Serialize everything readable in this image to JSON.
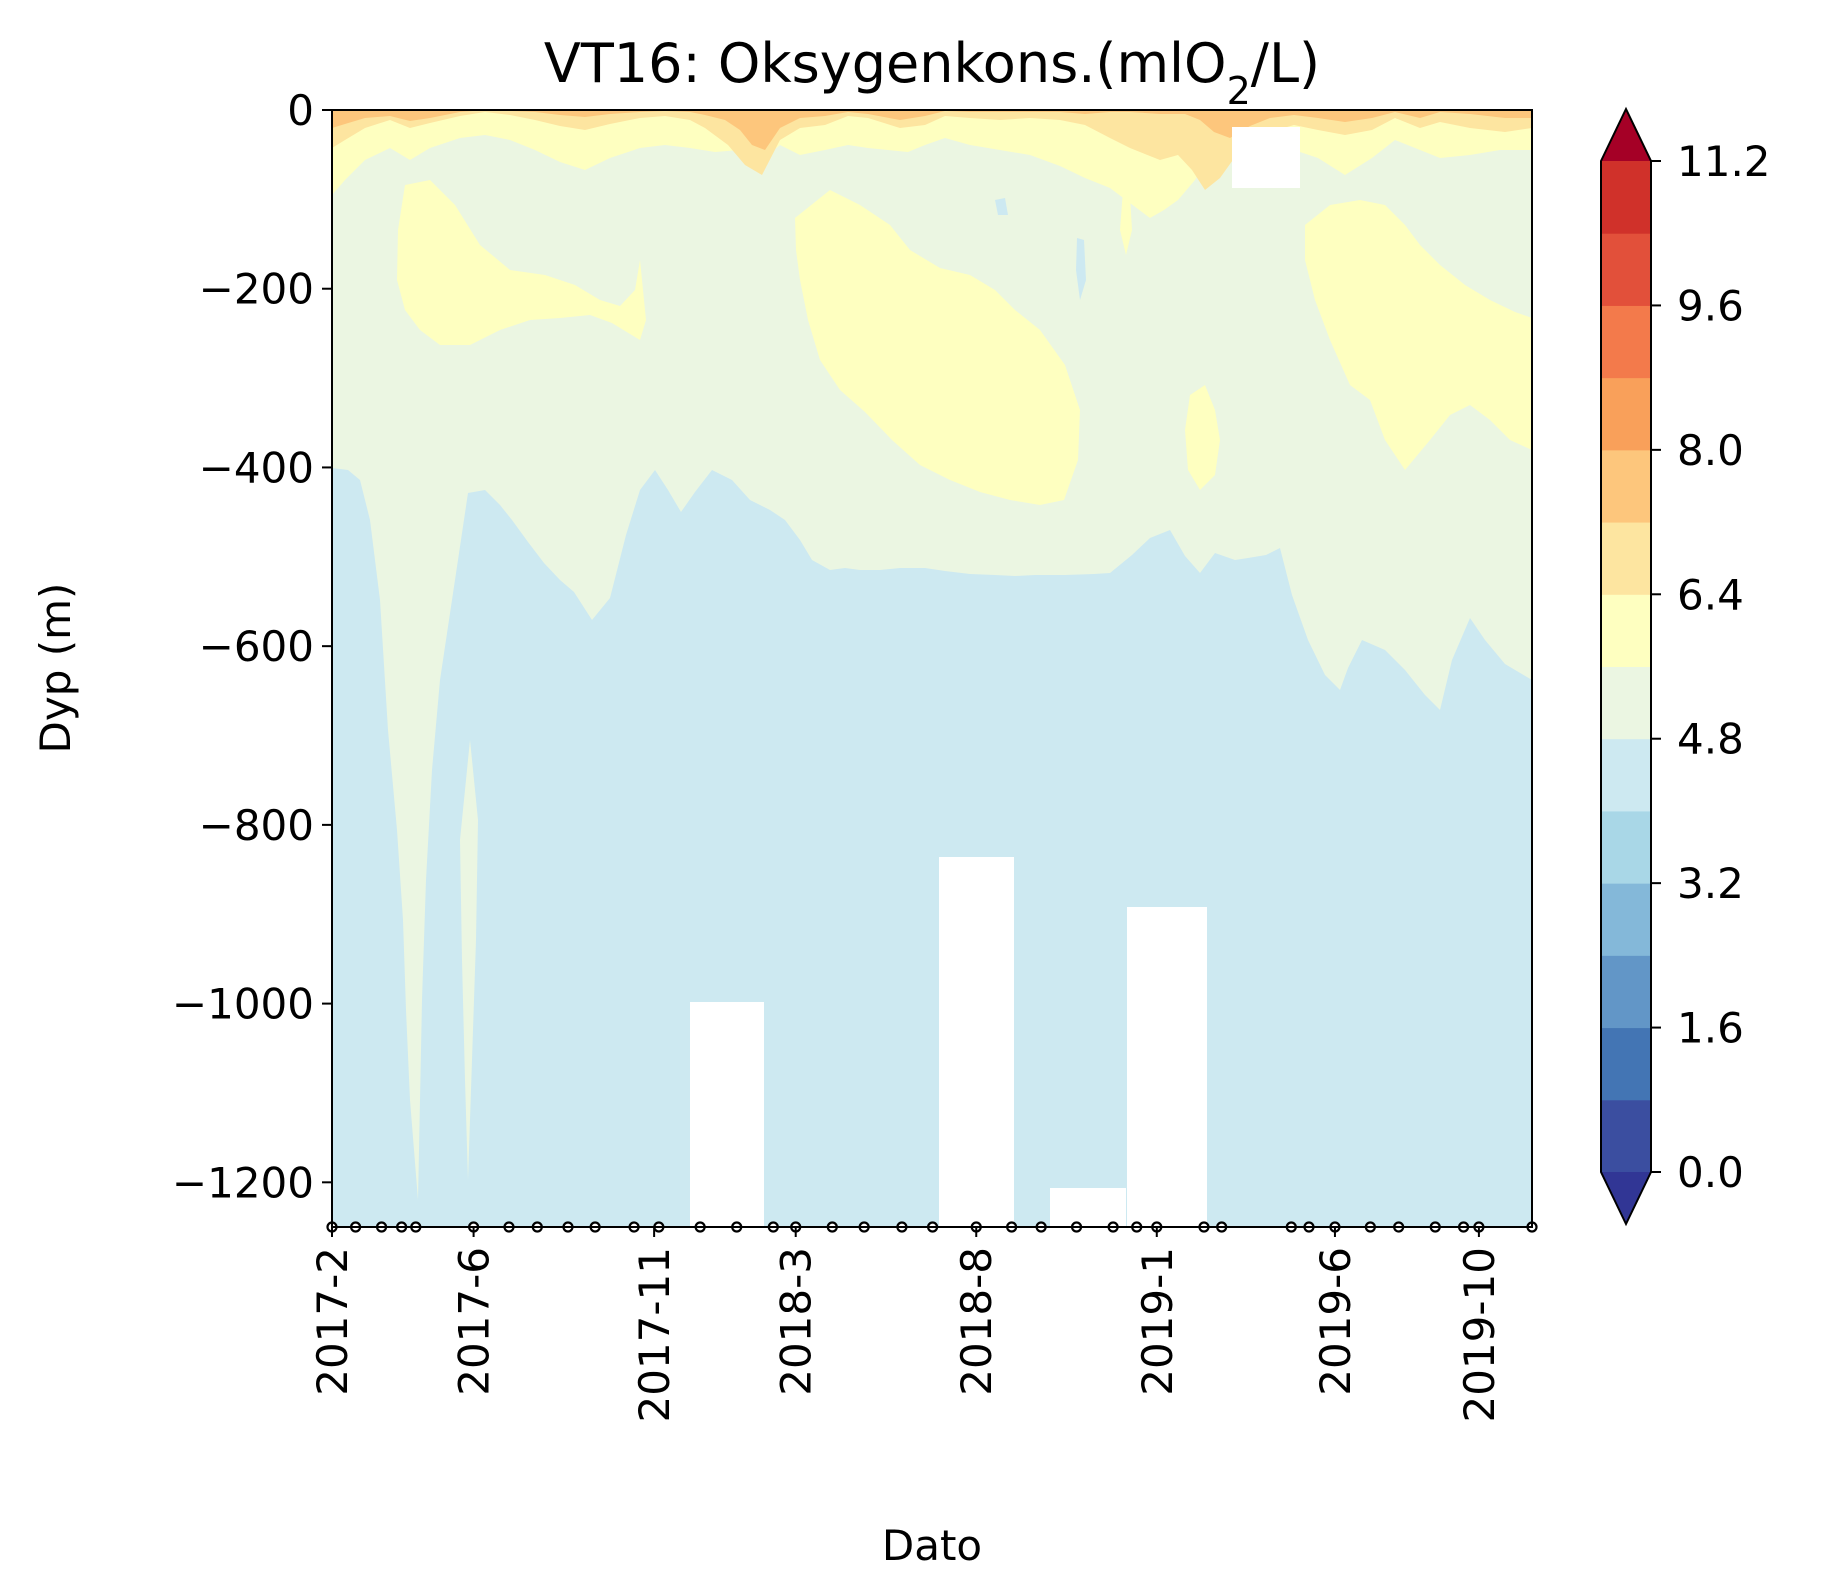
{
  "chart_data": {
    "type": "heatmap",
    "subtype": "filled-contour",
    "title_main": "VT16: Oksygenkons.(mlO",
    "title_sub": "2",
    "title_end": "/L)",
    "xlabel": "Dato",
    "ylabel": "Dyp (m)",
    "x_tick_labels": [
      "2017-2",
      "2017-6",
      "2017-11",
      "2018-3",
      "2018-8",
      "2019-1",
      "2019-6",
      "2019-10"
    ],
    "x_tick_dates": [
      "2017-02-01",
      "2017-06-01",
      "2017-11-01",
      "2018-03-01",
      "2018-08-01",
      "2019-01-01",
      "2019-06-01",
      "2019-10-01"
    ],
    "xlim": [
      "2017-02-01",
      "2019-11-15"
    ],
    "y_ticks": [
      0,
      -200,
      -400,
      -600,
      -800,
      -1000,
      -1200
    ],
    "y_tick_labels": [
      "0",
      "−200",
      "−400",
      "−600",
      "−800",
      "−1000",
      "−1200"
    ],
    "ylim": [
      -1250,
      0
    ],
    "colorbar": {
      "min": 0.0,
      "max": 11.2,
      "step": 0.8,
      "extend": "both",
      "tick_values": [
        0.0,
        1.6,
        3.2,
        4.8,
        6.4,
        8.0,
        9.6,
        11.2
      ],
      "tick_labels": [
        "0.0",
        "1.6",
        "3.2",
        "4.8",
        "6.4",
        "8.0",
        "9.6",
        "11.2"
      ],
      "colors": [
        "#3b4ea0",
        "#4375b4",
        "#6296c7",
        "#84b8d9",
        "#a9d7e7",
        "#cde9f1",
        "#ebf6e2",
        "#feffc0",
        "#fde5a0",
        "#fdc67c",
        "#f9a05a",
        "#f37a4b",
        "#e2503a",
        "#d0312a"
      ],
      "under_color": "#313695",
      "over_color": "#a50026"
    },
    "sample_dates": [
      "2017-02-01",
      "2017-02-21",
      "2017-03-15",
      "2017-04-01",
      "2017-04-13",
      "2017-06-01",
      "2017-07-01",
      "2017-07-25",
      "2017-08-20",
      "2017-09-12",
      "2017-10-15",
      "2017-11-05",
      "2017-12-10",
      "2018-01-10",
      "2018-02-10",
      "2018-03-01",
      "2018-04-01",
      "2018-04-28",
      "2018-05-30",
      "2018-06-25",
      "2018-08-01",
      "2018-08-31",
      "2018-09-25",
      "2018-10-25",
      "2018-11-25",
      "2018-12-15",
      "2019-01-01",
      "2019-02-10",
      "2019-02-25",
      "2019-04-25",
      "2019-05-10",
      "2019-06-01",
      "2019-07-01",
      "2019-07-25",
      "2019-08-25",
      "2019-09-18",
      "2019-10-01",
      "2019-11-15"
    ],
    "sample_depth": -1250,
    "data_notes": "Surface 0 to -50 m: 6.4-8.0 mlO2/L; -50 to -400 m: 4.8-6.4; below about -450 m to bottom: 4.0-4.8. White gaps where no data."
  }
}
